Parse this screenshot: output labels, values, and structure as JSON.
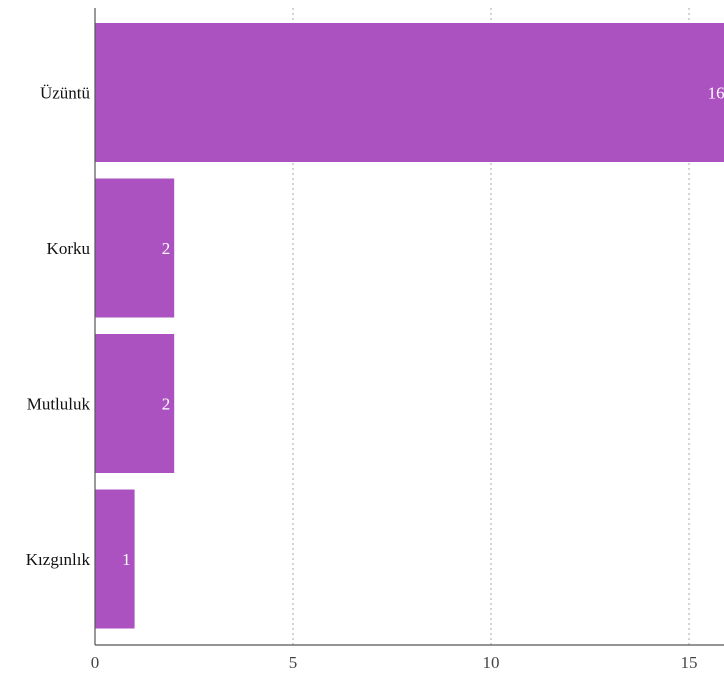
{
  "chart_data": {
    "type": "bar",
    "orientation": "horizontal",
    "categories": [
      "Üzüntü",
      "Korku",
      "Mutluluk",
      "Kızgınlık"
    ],
    "values": [
      16,
      2,
      2,
      1
    ],
    "value_labels": [
      "16",
      "2",
      "2",
      "1"
    ],
    "x_ticks": [
      "0",
      "5",
      "10",
      "15"
    ],
    "xlim": [
      0,
      16
    ],
    "bar_color": "#ac52c0",
    "grid": true,
    "title": "",
    "xlabel": "",
    "ylabel": ""
  }
}
